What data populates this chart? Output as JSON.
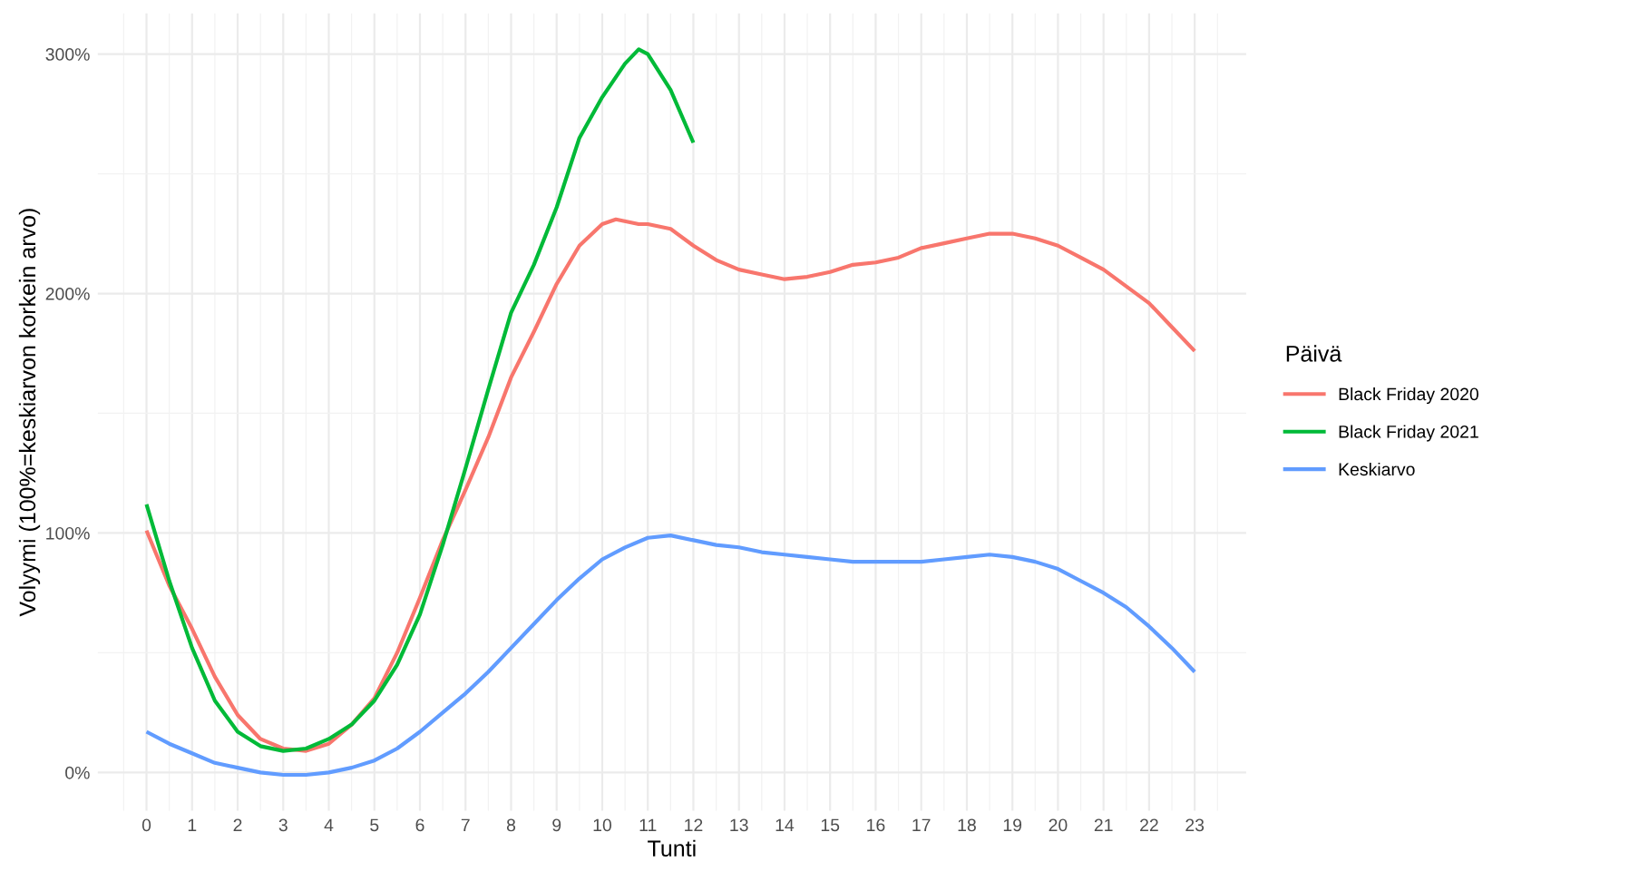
{
  "chart_data": {
    "type": "line",
    "xlabel": "Tunti",
    "ylabel": "Volyymi (100%=keskiarvon korkein arvo)",
    "legend_title": "Päivä",
    "legend": "right",
    "grid": true,
    "line_style": "solid",
    "marker": "none",
    "xlim": [
      -1.07,
      24.13
    ],
    "ylim": [
      -16,
      317
    ],
    "xticks": [
      0,
      1,
      2,
      3,
      4,
      5,
      6,
      7,
      8,
      9,
      10,
      11,
      12,
      13,
      14,
      15,
      16,
      17,
      18,
      19,
      20,
      21,
      22,
      23
    ],
    "yticks": [
      {
        "value": 0,
        "label": "0%"
      },
      {
        "value": 100,
        "label": "100%"
      },
      {
        "value": 200,
        "label": "200%"
      },
      {
        "value": 300,
        "label": "300%"
      }
    ],
    "series": [
      {
        "name": "Black Friday 2020",
        "color": "#f8766d",
        "x": [
          0,
          0.5,
          1,
          1.5,
          2,
          2.5,
          3,
          3.5,
          4,
          4.5,
          5,
          5.5,
          6,
          6.5,
          7,
          7.5,
          8,
          8.5,
          9,
          9.5,
          10,
          10.3,
          10.8,
          11,
          11.5,
          12,
          12.5,
          13,
          13.5,
          14,
          14.5,
          15,
          15.5,
          16,
          16.5,
          17,
          17.5,
          18,
          18.5,
          19,
          19.5,
          20,
          20.5,
          21,
          21.5,
          22,
          22.5,
          23
        ],
        "values": [
          101,
          78,
          60,
          40,
          24,
          14,
          10,
          9,
          12,
          20,
          31,
          50,
          73,
          97,
          118,
          140,
          165,
          184,
          204,
          220,
          229,
          231,
          229,
          229,
          227,
          220,
          214,
          210,
          208,
          206,
          207,
          209,
          212,
          213,
          215,
          219,
          221,
          223,
          225,
          225,
          223,
          220,
          215,
          210,
          203,
          196,
          186,
          176
        ]
      },
      {
        "name": "Black Friday 2021",
        "color": "#00ba38",
        "x": [
          0,
          0.5,
          1,
          1.5,
          2,
          2.5,
          3,
          3.5,
          4,
          4.5,
          5,
          5.5,
          6,
          6.5,
          7,
          7.5,
          8,
          8.5,
          9,
          9.5,
          10,
          10.5,
          10.8,
          11,
          11.5,
          12
        ],
        "values": [
          112,
          80,
          52,
          30,
          17,
          11,
          9,
          10,
          14,
          20,
          30,
          45,
          66,
          95,
          127,
          160,
          192,
          212,
          236,
          265,
          282,
          296,
          302,
          300,
          285,
          263
        ]
      },
      {
        "name": "Keskiarvo",
        "color": "#619cff",
        "x": [
          0,
          0.5,
          1,
          1.5,
          2,
          2.5,
          3,
          3.5,
          4,
          4.5,
          5,
          5.5,
          6,
          6.5,
          7,
          7.5,
          8,
          8.5,
          9,
          9.5,
          10,
          10.5,
          11,
          11.5,
          12,
          12.5,
          13,
          13.5,
          14,
          14.5,
          15,
          15.5,
          16,
          16.5,
          17,
          17.5,
          18,
          18.5,
          19,
          19.5,
          20,
          20.5,
          21,
          21.5,
          22,
          22.5,
          23
        ],
        "values": [
          17,
          12,
          8,
          4,
          2,
          0,
          -1,
          -1,
          0,
          2,
          5,
          10,
          17,
          25,
          33,
          42,
          52,
          62,
          72,
          81,
          89,
          94,
          98,
          99,
          97,
          95,
          94,
          92,
          91,
          90,
          89,
          88,
          88,
          88,
          88,
          89,
          90,
          91,
          90,
          88,
          85,
          80,
          75,
          69,
          61,
          52,
          42
        ]
      }
    ]
  }
}
